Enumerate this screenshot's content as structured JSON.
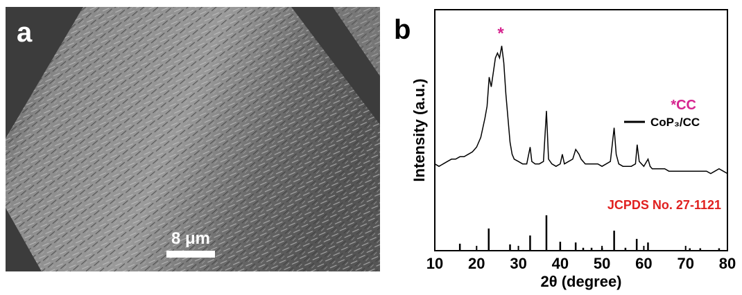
{
  "panel_a": {
    "label": "a",
    "scale_bar": "8 μm"
  },
  "chart_data": {
    "type": "line",
    "panel_label": "b",
    "xlabel": "2θ (degree)",
    "ylabel": "Intensity (a.u.)",
    "xlim": [
      10,
      80
    ],
    "xticks": [
      10,
      20,
      30,
      40,
      50,
      60,
      70,
      80
    ],
    "ylim": [
      0,
      100
    ],
    "series": [
      {
        "name": "CoP₃/CC",
        "type": "line",
        "color": "#000000",
        "x": [
          10,
          11,
          12,
          13,
          14,
          15,
          16,
          17,
          18,
          19,
          20,
          21,
          22,
          22.5,
          23,
          23.5,
          24,
          24.5,
          25,
          25.5,
          26,
          26.5,
          27,
          27.5,
          28,
          28.5,
          29,
          30,
          31,
          32,
          32.8,
          33.2,
          34,
          35,
          36,
          36.7,
          37.2,
          38,
          39,
          40,
          40.5,
          41,
          42,
          43,
          43.7,
          44.5,
          45,
          46,
          47,
          48,
          49,
          50,
          51,
          52,
          52.9,
          53.4,
          54,
          55,
          56,
          57,
          58,
          58.4,
          58.9,
          60,
          61,
          61.5,
          62,
          63,
          64,
          65,
          66,
          67,
          68,
          69,
          70,
          71,
          72,
          73,
          74,
          75,
          76,
          77,
          78,
          79,
          80
        ],
        "values": [
          36,
          35,
          36,
          37,
          38,
          38,
          39,
          39,
          40,
          41,
          43,
          47,
          55,
          60,
          72,
          68,
          74,
          80,
          82,
          80,
          85,
          78,
          65,
          55,
          45,
          40,
          38,
          37,
          36,
          36,
          43,
          37,
          36,
          36,
          37,
          58,
          38,
          36,
          35,
          36,
          40,
          36,
          37,
          38,
          42,
          40,
          38,
          36,
          36,
          36,
          36,
          35,
          36,
          37,
          51,
          40,
          36,
          35,
          35,
          35,
          36,
          44,
          37,
          35,
          38,
          35,
          34,
          34,
          34,
          34,
          33,
          33,
          33,
          33,
          33,
          33,
          33,
          33,
          33,
          33,
          32,
          33,
          34,
          33,
          32
        ]
      },
      {
        "name": "JCPDS No. 27-1121",
        "type": "stem",
        "color": "#000000",
        "label_color": "#e0201f",
        "x": [
          16,
          22.9,
          28,
          32.8,
          36.7,
          40,
          43.7,
          45.5,
          47.5,
          50,
          52.9,
          55.6,
          58.3,
          61,
          71,
          73.5,
          78
        ],
        "values": [
          2.9,
          9.2,
          2.6,
          6.3,
          14.7,
          3.7,
          3.4,
          1.2,
          1.2,
          1.2,
          8.3,
          1.2,
          4.9,
          3.4,
          1,
          1,
          1
        ]
      }
    ],
    "annotations": [
      {
        "text": "*",
        "color": "#d6248f"
      },
      {
        "text": "*CC",
        "color": "#d6248f"
      }
    ]
  }
}
